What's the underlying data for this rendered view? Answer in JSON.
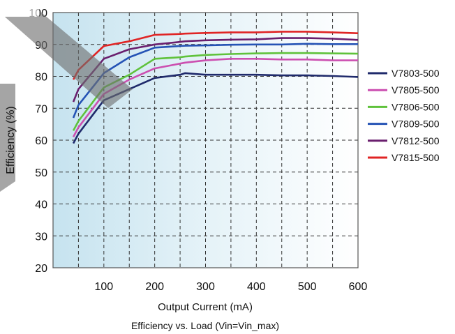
{
  "chart_data": {
    "type": "line",
    "title": "",
    "caption": "Efficiency vs. Load (Vin=Vin_max)",
    "xlabel": "Output Current (mA)",
    "ylabel": "Efficiency (%)",
    "xlim": [
      0,
      600
    ],
    "ylim": [
      20,
      100
    ],
    "xticks": [
      100,
      200,
      300,
      400,
      500,
      600
    ],
    "yticks": [
      20,
      30,
      40,
      50,
      60,
      70,
      80,
      90,
      100
    ],
    "grid": true,
    "legend_position": "right",
    "background": "gradient light-blue to white",
    "x": [
      40,
      50,
      100,
      150,
      200,
      250,
      260,
      300,
      350,
      400,
      450,
      500,
      550,
      600
    ],
    "series": [
      {
        "name": "V7803-500",
        "color": "#1f2a6b",
        "values": [
          59,
          62,
          72.5,
          76,
          79.5,
          80.5,
          81,
          80.5,
          80.5,
          80.5,
          80.3,
          80.3,
          80.1,
          79.8
        ]
      },
      {
        "name": "V7805-500",
        "color": "#cc4fb0",
        "values": [
          61,
          64,
          74.5,
          79,
          82.5,
          84,
          84.3,
          85,
          85.5,
          85.5,
          85.3,
          85.3,
          85,
          85
        ]
      },
      {
        "name": "V7806-500",
        "color": "#5fc23b",
        "values": [
          63,
          66,
          76.5,
          80.5,
          85.5,
          86,
          86.2,
          86.7,
          87,
          87.2,
          87.3,
          87.3,
          87.2,
          87.1
        ]
      },
      {
        "name": "V7809-500",
        "color": "#2553b5",
        "values": [
          67,
          71,
          81,
          86,
          89,
          89.5,
          89.6,
          89.7,
          89.9,
          90,
          90,
          90.2,
          90.1,
          90.1
        ]
      },
      {
        "name": "V7812-500",
        "color": "#6a1f6e",
        "values": [
          72,
          76,
          85.5,
          88.5,
          90,
          90.8,
          91,
          91.3,
          91.5,
          91.6,
          92,
          92,
          91.8,
          91.4
        ]
      },
      {
        "name": "V7815-500",
        "color": "#e02424",
        "values": [
          79,
          82,
          89.5,
          91,
          93,
          93.3,
          93.4,
          93.6,
          93.8,
          93.8,
          94,
          94,
          93.8,
          93.5
        ]
      }
    ]
  }
}
